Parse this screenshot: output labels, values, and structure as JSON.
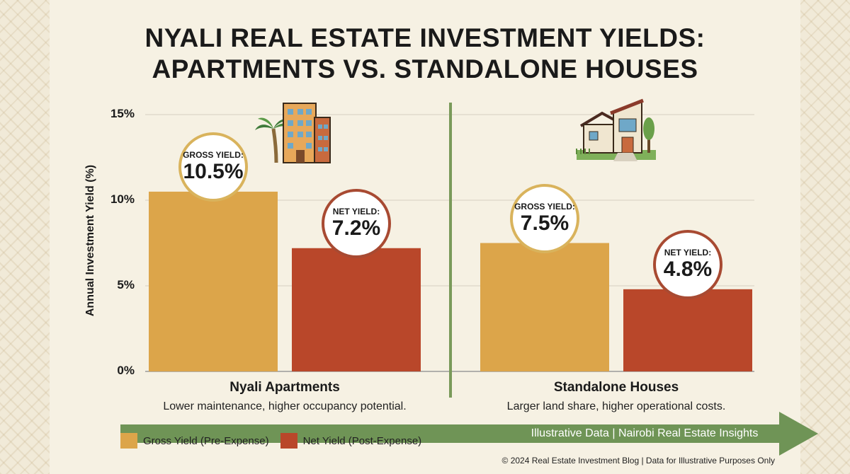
{
  "title_line1": "NYALI REAL ESTATE INVESTMENT YIELDS:",
  "title_line2": "APARTMENTS VS. STANDALONE HOUSES",
  "colors": {
    "gross": "#dca54a",
    "net": "#b9472a",
    "divider": "#7a9a5a",
    "arrow": "#6f9456",
    "background": "#f6f1e3"
  },
  "chart_data": {
    "type": "bar",
    "ylabel": "Annual Investment Yield (%)",
    "ylim": [
      0,
      15
    ],
    "yticks": [
      "0%",
      "5%",
      "10%",
      "15%"
    ],
    "grid": true,
    "categories": [
      "Nyali Apartments",
      "Standalone Houses"
    ],
    "category_notes": [
      "Lower maintenance, higher occupancy potential.",
      "Larger land share, higher operational costs."
    ],
    "series": [
      {
        "name": "Gross Yield (Pre-Expense)",
        "values": [
          10.5,
          7.5
        ],
        "bubble_label": "GROSS YIELD:",
        "value_labels": [
          "10.5%",
          "7.5%"
        ]
      },
      {
        "name": "Net Yield (Post-Expense)",
        "values": [
          7.2,
          4.8
        ],
        "bubble_label": "NET YIELD:",
        "value_labels": [
          "7.2%",
          "4.8%"
        ]
      }
    ],
    "legend_position": "bottom-left"
  },
  "icons": [
    "apartment-building-icon",
    "palm-tree-icon",
    "house-icon"
  ],
  "arrow_text": "Illustrative Data | Nairobi Real Estate Insights",
  "footer": "© 2024 Real Estate Investment Blog | Data for Illustrative Purposes Only"
}
